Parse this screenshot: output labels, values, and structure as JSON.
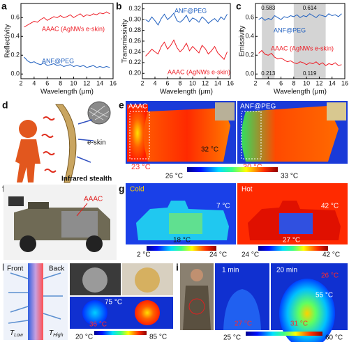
{
  "chart_data": [
    {
      "type": "line",
      "panel": "a",
      "y_label": "Reflectivity",
      "x_label": "Wavelength (μm)",
      "xlim": [
        2,
        16
      ],
      "xticks": [
        2,
        4,
        6,
        8,
        10,
        12,
        14,
        16
      ],
      "ylim": [
        -0.05,
        0.75
      ],
      "yticks": [
        {
          "value": 0,
          "label": "0.0"
        },
        {
          "value": 0.2,
          "label": "0.2"
        },
        {
          "value": 0.4,
          "label": "0.4"
        },
        {
          "value": 0.6,
          "label": "0.6"
        }
      ],
      "x": [
        2.5,
        3,
        3.5,
        4,
        4.5,
        5,
        5.5,
        6,
        6.5,
        7,
        7.5,
        8,
        8.5,
        9,
        9.5,
        10,
        10.5,
        11,
        11.5,
        12,
        12.5,
        13,
        13.5,
        14,
        14.5,
        15,
        15.5
      ],
      "series": [
        {
          "name": "AAAC (AgNWs e-skin)",
          "color": "#ee1c25",
          "values": [
            0.5,
            0.52,
            0.54,
            0.56,
            0.55,
            0.58,
            0.6,
            0.57,
            0.59,
            0.61,
            0.6,
            0.62,
            0.6,
            0.61,
            0.63,
            0.6,
            0.62,
            0.64,
            0.61,
            0.63,
            0.62,
            0.64,
            0.63,
            0.65,
            0.64,
            0.66,
            0.64
          ]
        },
        {
          "name": "ANF@PEG",
          "color": "#1f5fbf",
          "values": [
            0.18,
            0.14,
            0.12,
            0.13,
            0.11,
            0.1,
            0.12,
            0.09,
            0.1,
            0.11,
            0.09,
            0.1,
            0.08,
            0.09,
            0.1,
            0.08,
            0.09,
            0.08,
            0.09,
            0.07,
            0.08,
            0.09,
            0.07,
            0.08,
            0.07,
            0.08,
            0.07
          ]
        }
      ]
    },
    {
      "type": "line",
      "panel": "b",
      "y_label": "Transmissivity",
      "x_label": "Wavelength (μm)",
      "xlim": [
        2,
        16
      ],
      "xticks": [
        2,
        4,
        6,
        8,
        10,
        12,
        14,
        16
      ],
      "ylim": [
        0.19,
        0.33
      ],
      "yticks": [
        {
          "value": 0.2,
          "label": "0.20"
        },
        0.22,
        0.24,
        0.26,
        0.28,
        {
          "value": 0.3,
          "label": "0.30"
        },
        0.32
      ],
      "x": [
        2.5,
        3,
        3.5,
        4,
        4.5,
        5,
        5.5,
        6,
        6.5,
        7,
        7.5,
        8,
        8.5,
        9,
        9.5,
        10,
        10.5,
        11,
        11.5,
        12,
        12.5,
        13,
        13.5,
        14,
        14.5,
        15,
        15.5
      ],
      "series": [
        {
          "name": "ANF@PEG",
          "color": "#1f5fbf",
          "values": [
            0.3,
            0.296,
            0.305,
            0.298,
            0.29,
            0.302,
            0.31,
            0.3,
            0.305,
            0.312,
            0.298,
            0.295,
            0.3,
            0.308,
            0.296,
            0.303,
            0.3,
            0.295,
            0.305,
            0.3,
            0.293,
            0.298,
            0.302,
            0.296,
            0.305,
            0.3,
            0.31
          ]
        },
        {
          "name": "AAAC (AgNWs e-skin)",
          "color": "#ee1c25",
          "values": [
            0.232,
            0.238,
            0.245,
            0.24,
            0.236,
            0.25,
            0.258,
            0.245,
            0.252,
            0.262,
            0.248,
            0.24,
            0.246,
            0.256,
            0.242,
            0.25,
            0.244,
            0.238,
            0.252,
            0.246,
            0.236,
            0.242,
            0.25,
            0.238,
            0.232,
            0.226,
            0.24
          ]
        }
      ]
    },
    {
      "type": "line",
      "panel": "c",
      "y_label": "Emissivity",
      "x_label": "Wavelength (μm)",
      "xlim": [
        2,
        16
      ],
      "xticks": [
        2,
        4,
        6,
        8,
        10,
        12,
        14,
        16
      ],
      "ylim": [
        -0.05,
        0.75
      ],
      "yticks": [
        {
          "value": 0,
          "label": "0.0"
        },
        {
          "value": 0.2,
          "label": "0.2"
        },
        {
          "value": 0.4,
          "label": "0.4"
        },
        {
          "value": 0.6,
          "label": "0.6"
        }
      ],
      "bands": [
        {
          "x": [
            3,
            5
          ],
          "values": [
            0.583,
            0.213
          ]
        },
        {
          "x": [
            8,
            13
          ],
          "values": [
            0.614,
            0.119
          ]
        }
      ],
      "x": [
        2.5,
        3,
        3.5,
        4,
        4.5,
        5,
        5.5,
        6,
        6.5,
        7,
        7.5,
        8,
        8.5,
        9,
        9.5,
        10,
        10.5,
        11,
        11.5,
        12,
        12.5,
        13,
        13.5,
        14,
        14.5,
        15,
        15.5
      ],
      "series": [
        {
          "name": "ANF@PEG",
          "color": "#1f5fbf",
          "values": [
            0.58,
            0.6,
            0.57,
            0.59,
            0.58,
            0.62,
            0.6,
            0.58,
            0.61,
            0.6,
            0.62,
            0.61,
            0.63,
            0.6,
            0.62,
            0.61,
            0.64,
            0.62,
            0.6,
            0.63,
            0.62,
            0.61,
            0.64,
            0.62,
            0.63,
            0.61,
            0.64
          ]
        },
        {
          "name": "AAAC (AgNWs e-skin)",
          "color": "#ee1c25",
          "values": [
            0.22,
            0.25,
            0.21,
            0.2,
            0.22,
            0.18,
            0.16,
            0.17,
            0.15,
            0.13,
            0.14,
            0.12,
            0.11,
            0.13,
            0.12,
            0.1,
            0.12,
            0.11,
            0.13,
            0.1,
            0.12,
            0.09,
            0.11,
            0.1,
            0.12,
            0.09,
            0.1
          ]
        }
      ]
    }
  ],
  "panels": {
    "d": {
      "label": "d",
      "inset": "e-skin",
      "caption": "Infrared stealth"
    },
    "e": {
      "label": "e",
      "left": "AAAC",
      "right": "ANF@PEG",
      "t_center": "32 °C",
      "t_left": "23 °C",
      "t_right": "30 °C",
      "scale": [
        "26 °C",
        "33 °C"
      ]
    },
    "f": {
      "label": "f",
      "tag": "AAAC"
    },
    "g": {
      "label": "g",
      "left": "Cold",
      "right": "Hot",
      "cold_temps": [
        "7 °C",
        "18 °C"
      ],
      "hot_temps": [
        "42 °C",
        "27 °C"
      ],
      "cold_scale": [
        "2 °C",
        "24 °C"
      ],
      "hot_scale": [
        "24 °C",
        "42 °C"
      ]
    },
    "h": {
      "label": "h",
      "front": "Front",
      "back": "Back",
      "t_low": [
        "T",
        "Low"
      ],
      "t_high": [
        "T",
        "High"
      ],
      "temps": [
        "75 °C",
        "36 °C"
      ],
      "scale": [
        "20 °C",
        "85 °C"
      ]
    },
    "i": {
      "label": "i",
      "times": [
        "1 min",
        "20 min"
      ],
      "temps": [
        "26 °C",
        "55 °C",
        "27 °C",
        "31 °C"
      ],
      "scale": [
        "25 °C",
        "60 °C"
      ]
    }
  }
}
